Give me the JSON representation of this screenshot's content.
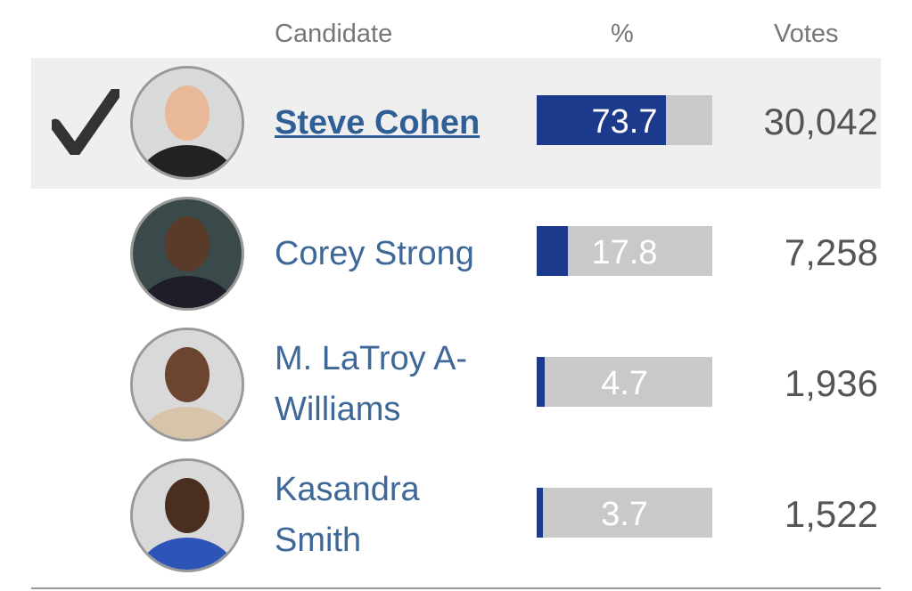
{
  "table": {
    "header": [
      "Candidate",
      "%",
      "Votes"
    ],
    "rows": [
      {
        "name": "Steve Cohen",
        "percent": 73.7,
        "votes": "30,042"
      },
      {
        "name": "Corey Strong",
        "percent": 17.8,
        "votes": "7,258"
      },
      {
        "name": "M. LaTroy A-Williams",
        "percent": 4.7,
        "votes": "1,936"
      },
      {
        "name": "Kasandra Smith",
        "percent": 3.7,
        "votes": "1,522"
      }
    ]
  }
}
